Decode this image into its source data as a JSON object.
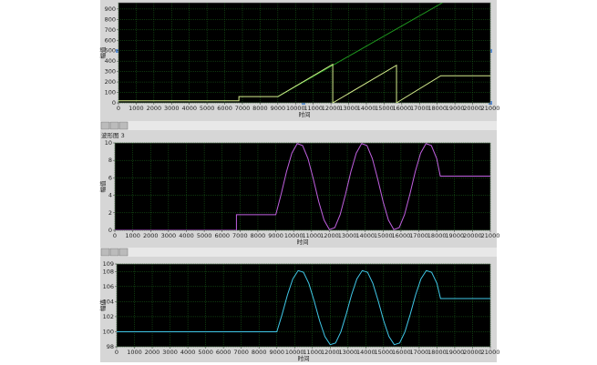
{
  "chart_data": [
    {
      "type": "line",
      "xlabel": "时间",
      "ylabel": "幅值",
      "xlim": [
        0,
        21000
      ],
      "xticks": [
        0,
        1000,
        2000,
        3000,
        4000,
        5000,
        6000,
        7000,
        8000,
        9000,
        10000,
        11000,
        12000,
        13000,
        14000,
        15000,
        16000,
        17000,
        18000,
        19000,
        20000,
        21000
      ],
      "ylim": [
        0,
        960
      ],
      "yticks": [
        0,
        100,
        200,
        300,
        400,
        500,
        600,
        700,
        800,
        900
      ],
      "grid": true,
      "series": [
        {
          "color": "#1f9a1f",
          "x": [
            9000,
            18300
          ],
          "values": [
            60,
            960
          ]
        },
        {
          "color": "#d4ec8c",
          "x": [
            0,
            6800,
            6800,
            9000,
            12100,
            12100,
            15700,
            15700,
            18200,
            21000
          ],
          "values": [
            20,
            20,
            60,
            60,
            370,
            0,
            360,
            0,
            260,
            260
          ]
        }
      ]
    },
    {
      "type": "line",
      "title": "波形图 3",
      "xlabel": "时间",
      "ylabel": "幅值",
      "xlim": [
        0,
        21000
      ],
      "xticks": [
        0,
        1000,
        2000,
        3000,
        4000,
        5000,
        6000,
        7000,
        8000,
        9000,
        10000,
        11000,
        12000,
        13000,
        14000,
        15000,
        16000,
        17000,
        18000,
        19000,
        20000,
        21000
      ],
      "ylim": [
        0,
        10
      ],
      "yticks": [
        0,
        2,
        4,
        6,
        8,
        10
      ],
      "grid": true,
      "series": [
        {
          "color": "#c060e0",
          "x": [
            0,
            6800,
            6800,
            9000,
            9300,
            9600,
            9900,
            10200,
            10500,
            10800,
            11100,
            11400,
            11700,
            12000,
            12300,
            12600,
            12900,
            13200,
            13500,
            13800,
            14100,
            14400,
            14700,
            15000,
            15300,
            15600,
            15900,
            16200,
            16500,
            16800,
            17100,
            17400,
            17700,
            18000,
            18200,
            21000
          ],
          "values": [
            0,
            0,
            1.79,
            1.79,
            4.13,
            6.71,
            8.83,
            9.92,
            9.7,
            8.21,
            5.87,
            3.29,
            1.17,
            0.08,
            0.3,
            1.79,
            4.13,
            6.71,
            8.83,
            9.92,
            9.7,
            8.21,
            5.87,
            3.29,
            1.17,
            0.08,
            0.3,
            1.79,
            4.13,
            6.71,
            8.83,
            9.92,
            9.7,
            8.21,
            6.2,
            6.2
          ]
        }
      ]
    },
    {
      "type": "line",
      "xlabel": "时间",
      "ylabel": "幅值",
      "xlim": [
        0,
        21000
      ],
      "xticks": [
        0,
        1000,
        2000,
        3000,
        4000,
        5000,
        6000,
        7000,
        8000,
        9000,
        10000,
        11000,
        12000,
        13000,
        14000,
        15000,
        16000,
        17000,
        18000,
        19000,
        20000,
        21000
      ],
      "ylim": [
        98,
        109
      ],
      "yticks": [
        98,
        100,
        102,
        104,
        106,
        108,
        109
      ],
      "grid": true,
      "series": [
        {
          "color": "#40c8e8",
          "x": [
            0,
            9000,
            9300,
            9600,
            9900,
            10200,
            10500,
            10800,
            11100,
            11400,
            11700,
            12000,
            12300,
            12600,
            12900,
            13200,
            13500,
            13800,
            14100,
            14400,
            14700,
            15000,
            15300,
            15600,
            15900,
            16200,
            16500,
            16800,
            17100,
            17400,
            17700,
            18000,
            18200,
            21000
          ],
          "values": [
            99.99,
            99.99,
            102.33,
            104.91,
            107.03,
            108.12,
            107.9,
            106.41,
            104.07,
            101.49,
            99.37,
            98.28,
            98.5,
            99.99,
            102.33,
            104.91,
            107.03,
            108.12,
            107.9,
            106.41,
            104.07,
            101.49,
            99.37,
            98.28,
            98.5,
            99.99,
            102.33,
            104.91,
            107.03,
            108.12,
            107.9,
            106.41,
            104.4,
            104.4
          ]
        }
      ]
    }
  ]
}
